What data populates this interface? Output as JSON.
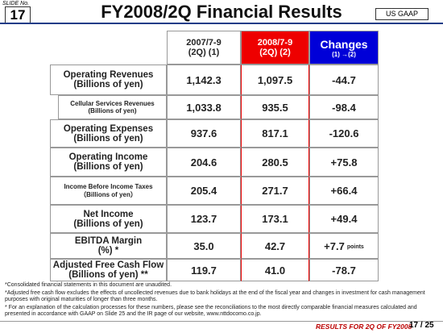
{
  "header": {
    "slide_label": "SLIDE No.",
    "slide_number": "17",
    "title": "FY2008/2Q Financial Results",
    "badge": "US GAAP"
  },
  "table": {
    "columns": [
      {
        "lines": [
          "2007/7-9",
          "(2Q) (1)"
        ]
      },
      {
        "lines": [
          "2008/7-9",
          "(2Q) (2)"
        ]
      },
      {
        "lines": [
          "Changes",
          "(1) →(2)"
        ]
      }
    ],
    "rows": [
      {
        "label": [
          "Operating Revenues",
          "(Billions of yen)"
        ],
        "cells": [
          "1,142.3",
          "1,097.5",
          "-44.7"
        ]
      },
      {
        "label": [
          "Cellular Services Revenues",
          "(Billions of yen)"
        ],
        "cells": [
          "1,033.8",
          "935.5",
          "-98.4"
        ]
      },
      {
        "label": [
          "Operating Expenses",
          "(Billions of yen)"
        ],
        "cells": [
          "937.6",
          "817.1",
          "-120.6"
        ]
      },
      {
        "label": [
          "Operating Income",
          "(Billions of yen)"
        ],
        "cells": [
          "204.6",
          "280.5",
          "+75.8"
        ]
      },
      {
        "label": [
          "Income Before Income Taxes",
          "（Billions of yen）"
        ],
        "cells": [
          "205.4",
          "271.7",
          "+66.4"
        ]
      },
      {
        "label": [
          "Net Income",
          "(Billions of yen)"
        ],
        "cells": [
          "123.7",
          "173.1",
          "+49.4"
        ]
      },
      {
        "label": [
          "EBITDA Margin",
          "(%) *"
        ],
        "cells": [
          "35.0",
          "42.7",
          "+7.7"
        ],
        "unit": "points"
      },
      {
        "label": [
          "Adjusted Free Cash Flow",
          "(Billions of yen) **"
        ],
        "cells": [
          "119.7",
          "41.0",
          "-78.7"
        ]
      }
    ]
  },
  "notes": [
    "*Consolidated financial statements in this document are unaudited.",
    "*Adjusted free cash flow excludes the effects of uncollected revenues due to bank holidays at the end of the fiscal year and changes in investment for cash management purposes with original maturities of longer than three months.",
    "* For an explanation of the calculation processes for these numbers, please see the reconciliations to the most directly comparable financial measures calculated and presented in accordance with GAAP on Slide 25 and the IR page of our website, www.nttdocomo.co.jp."
  ],
  "footer": {
    "caption": "RESULTS FOR 2Q OF FY2008",
    "page": "17 / 25"
  }
}
